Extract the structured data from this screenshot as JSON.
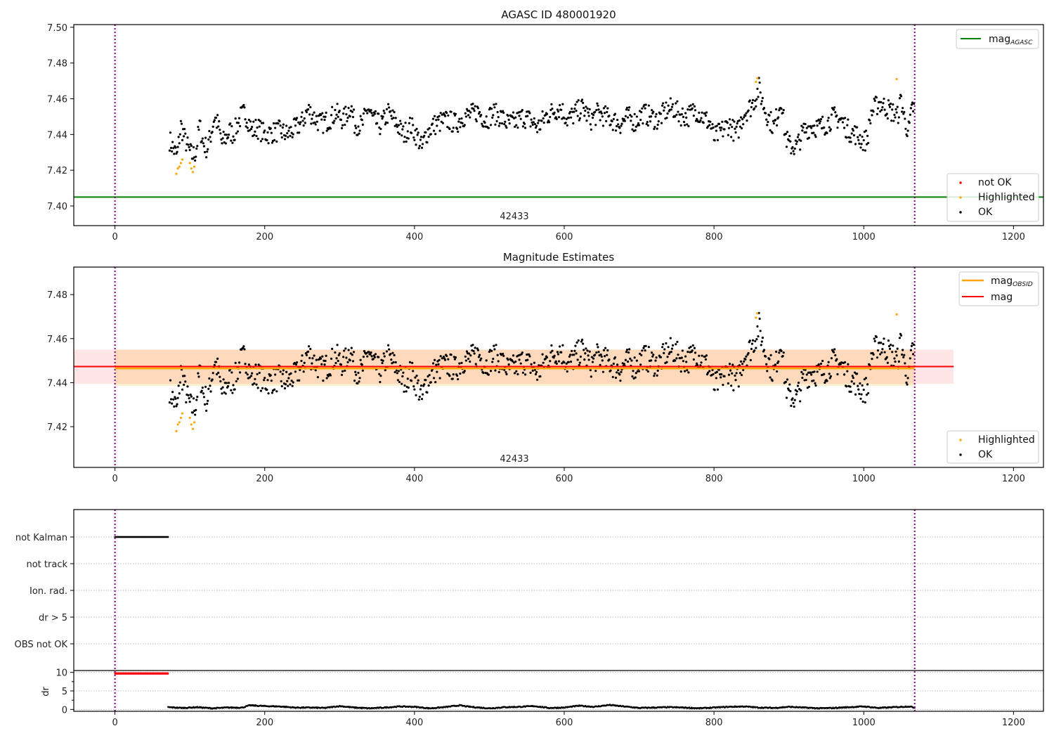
{
  "chart_data": [
    {
      "type": "scatter",
      "title": "AGASC ID 480001920",
      "xlabel": "",
      "ylabel": "",
      "xlim": [
        -55,
        1240
      ],
      "ylim": [
        7.389,
        7.5015
      ],
      "xticks": [
        0,
        200,
        400,
        600,
        800,
        1000,
        1200
      ],
      "yticks": [
        "7.40",
        "7.42",
        "7.44",
        "7.46",
        "7.48",
        "7.50"
      ],
      "annotation": "42433",
      "vlines": [
        0,
        1068
      ],
      "hline": {
        "name": "mag_AGASC",
        "value": 7.405,
        "color": "#008000"
      },
      "legend_lines": [
        {
          "label": "mag",
          "sub": "AGASC",
          "color": "#008000"
        }
      ],
      "legend_points": [
        {
          "label": "not OK",
          "color": "#ff0000"
        },
        {
          "label": "Highlighted",
          "color": "#ffa500"
        },
        {
          "label": "OK",
          "color": "#000000"
        }
      ],
      "legend_placement": [
        "upper-right",
        "lower-right"
      ],
      "series": [
        {
          "name": "OK",
          "color": "#000000",
          "x": [
            73,
            78,
            83,
            88,
            93,
            98,
            103,
            108,
            113,
            118,
            123,
            128,
            133,
            138,
            143,
            148,
            153,
            158,
            163,
            168,
            173,
            178,
            183,
            190,
            200,
            210,
            220,
            230,
            240,
            250,
            258,
            265,
            275,
            285,
            295,
            305,
            315,
            320,
            330,
            338,
            345,
            355,
            365,
            375,
            385,
            395,
            405,
            410,
            415,
            425,
            435,
            445,
            455,
            465,
            475,
            485,
            495,
            505,
            515,
            525,
            535,
            545,
            555,
            565,
            575,
            585,
            595,
            605,
            615,
            625,
            635,
            645,
            655,
            665,
            675,
            685,
            695,
            705,
            715,
            725,
            735,
            745,
            755,
            765,
            775,
            785,
            795,
            800,
            810,
            820,
            830,
            840,
            850,
            855,
            860,
            865,
            870,
            875,
            880,
            890,
            895,
            900,
            910,
            920,
            930,
            940,
            950,
            960,
            970,
            980,
            990,
            1000,
            1005,
            1010,
            1020,
            1030,
            1040,
            1045,
            1050,
            1055,
            1060,
            1065
          ],
          "y": [
            7.437,
            7.432,
            7.428,
            7.445,
            7.438,
            7.432,
            7.428,
            7.43,
            7.445,
            7.435,
            7.432,
            7.44,
            7.45,
            7.445,
            7.435,
            7.438,
            7.442,
            7.44,
            7.445,
            7.45,
            7.452,
            7.448,
            7.442,
            7.444,
            7.44,
            7.441,
            7.442,
            7.44,
            7.443,
            7.447,
            7.454,
            7.45,
            7.446,
            7.448,
            7.452,
            7.448,
            7.456,
            7.446,
            7.445,
            7.455,
            7.448,
            7.445,
            7.452,
            7.447,
            7.44,
            7.445,
            7.438,
            7.432,
            7.44,
            7.445,
            7.447,
            7.448,
            7.446,
            7.45,
            7.451,
            7.453,
            7.448,
            7.452,
            7.45,
            7.446,
            7.447,
            7.45,
            7.448,
            7.444,
            7.45,
            7.453,
            7.455,
            7.448,
            7.452,
            7.455,
            7.448,
            7.452,
            7.45,
            7.448,
            7.446,
            7.45,
            7.447,
            7.452,
            7.45,
            7.448,
            7.453,
            7.455,
            7.451,
            7.45,
            7.454,
            7.45,
            7.446,
            7.438,
            7.442,
            7.446,
            7.44,
            7.452,
            7.456,
            7.46,
            7.466,
            7.458,
            7.452,
            7.448,
            7.444,
            7.46,
            7.44,
            7.434,
            7.433,
            7.442,
            7.445,
            7.444,
            7.446,
            7.45,
            7.448,
            7.442,
            7.44,
            7.436,
            7.438,
            7.452,
            7.458,
            7.455,
            7.452,
            7.45,
            7.46,
            7.447,
            7.442,
            7.455
          ]
        },
        {
          "name": "Highlighted",
          "color": "#ffa500",
          "x": [
            82,
            84,
            86,
            88,
            90,
            100,
            102,
            104,
            106
          ],
          "y": [
            7.418,
            7.421,
            7.422,
            7.424,
            7.426,
            7.424,
            7.421,
            7.419,
            7.422
          ]
        },
        {
          "name": "Highlighted-late",
          "color": "#ffa500",
          "x": [
            856,
            858,
            1044
          ],
          "y": [
            7.4695,
            7.4715,
            7.471
          ]
        }
      ]
    },
    {
      "type": "scatter",
      "title": "Magnitude Estimates",
      "xlim": [
        -55,
        1240
      ],
      "ylim": [
        7.4015,
        7.4925
      ],
      "xticks": [
        0,
        200,
        400,
        600,
        800,
        1000,
        1200
      ],
      "yticks": [
        "7.42",
        "7.44",
        "7.46",
        "7.48"
      ],
      "annotation": "42433",
      "vlines": [
        0,
        1068
      ],
      "lines": [
        {
          "name": "mag_OBSID",
          "value": 7.4465,
          "color": "#ffa500",
          "x_range": [
            0,
            1068
          ],
          "band": [
            7.4385,
            7.455
          ]
        },
        {
          "name": "mag",
          "value": 7.4473,
          "color": "#ff0000",
          "x_range": [
            -55,
            1120
          ],
          "band": [
            7.4395,
            7.455
          ]
        }
      ],
      "legend_lines": [
        {
          "label": "mag",
          "sub": "OBSID",
          "color": "#ffa500"
        },
        {
          "label": "mag",
          "sub": "",
          "color": "#ff0000"
        }
      ],
      "legend_points": [
        {
          "label": "Highlighted",
          "color": "#ffa500"
        },
        {
          "label": "OK",
          "color": "#000000"
        }
      ],
      "legend_placement": [
        "upper-right",
        "lower-right"
      ]
    },
    {
      "type": "scatter",
      "title": "",
      "xlim": [
        -55,
        1240
      ],
      "xticks": [
        0,
        200,
        400,
        600,
        800,
        1000,
        1200
      ],
      "flag_labels": [
        "not Kalman",
        "not track",
        "Ion. rad.",
        "dr > 5",
        "OBS not OK"
      ],
      "flag_segments": [
        {
          "flag": "not Kalman",
          "x_range": [
            0,
            71
          ],
          "color": "#000000"
        }
      ],
      "dr": {
        "ylabel": "dr",
        "ylim": [
          -0.5,
          10.5
        ],
        "yticks": [
          "0",
          "5",
          "10"
        ],
        "capped": {
          "x_range": [
            0,
            71
          ],
          "value": 9.7,
          "color": "#ff0000"
        },
        "x": [
          71,
          90,
          110,
          130,
          150,
          170,
          180,
          200,
          220,
          240,
          260,
          280,
          300,
          320,
          340,
          360,
          380,
          400,
          420,
          440,
          460,
          470,
          480,
          500,
          520,
          540,
          560,
          580,
          600,
          620,
          640,
          660,
          680,
          700,
          720,
          740,
          760,
          780,
          800,
          820,
          840,
          860,
          880,
          900,
          920,
          940,
          960,
          980,
          1000,
          1020,
          1040,
          1060,
          1068
        ],
        "y": [
          0.6,
          0.4,
          0.6,
          0.3,
          0.5,
          0.5,
          1.1,
          0.9,
          0.8,
          0.5,
          0.5,
          0.4,
          0.9,
          0.5,
          0.3,
          0.5,
          0.8,
          0.7,
          0.3,
          0.6,
          1.1,
          0.8,
          0.6,
          0.3,
          0.6,
          0.7,
          0.9,
          0.4,
          0.5,
          1.0,
          0.7,
          1.2,
          0.8,
          0.4,
          0.5,
          0.6,
          0.5,
          0.3,
          0.5,
          0.7,
          0.8,
          0.5,
          0.4,
          0.7,
          0.5,
          0.3,
          0.4,
          0.6,
          0.8,
          0.4,
          0.6,
          0.8,
          0.5
        ]
      }
    }
  ]
}
